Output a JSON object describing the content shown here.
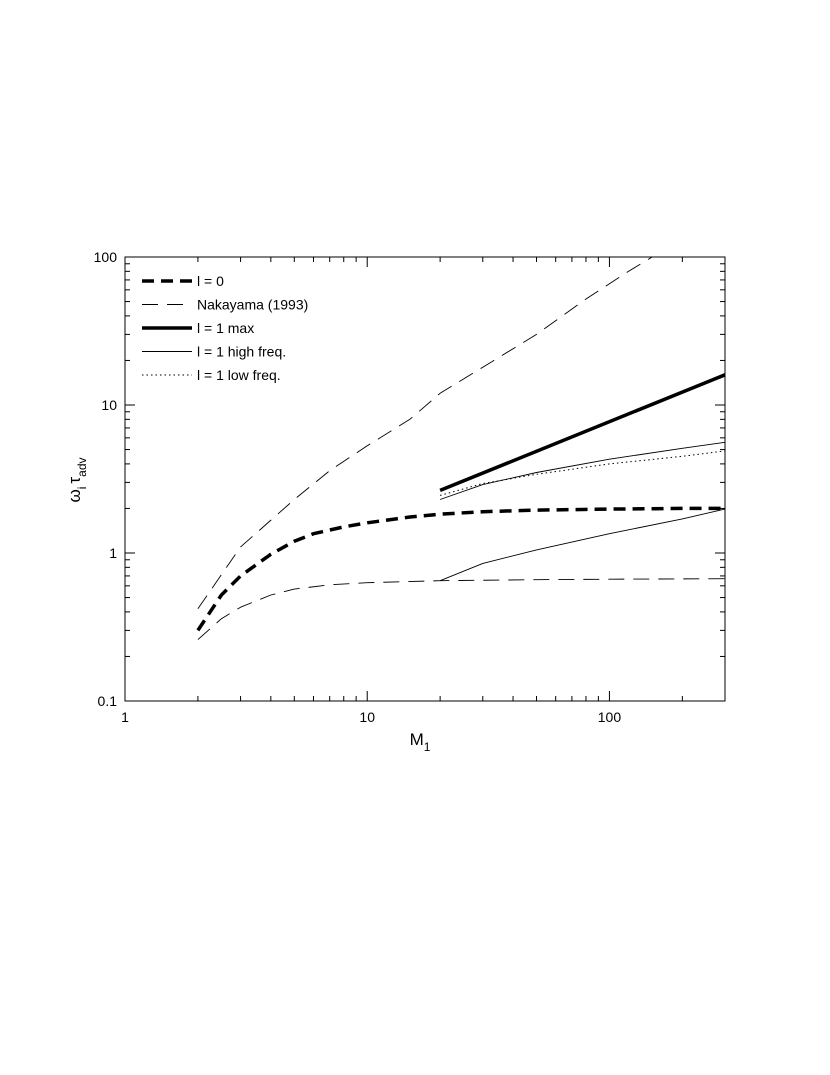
{
  "chart_data": {
    "type": "line",
    "title": "",
    "xlabel": {
      "main": "M",
      "subscript": "1"
    },
    "ylabel": {
      "omega": "ω",
      "omega_sub": "i",
      "tau": "τ",
      "tau_sub": "adv"
    },
    "xscale": "log",
    "yscale": "log",
    "xlim": [
      1,
      300
    ],
    "ylim": [
      0.1,
      100
    ],
    "x_tick_labels": [
      "1",
      "10",
      "100"
    ],
    "y_tick_labels": [
      "0.1",
      "1",
      "10",
      "100"
    ],
    "grid": false,
    "legend_position": "top-left",
    "series": [
      {
        "name": "l = 0",
        "style": "thick-dashed",
        "points": [
          [
            2,
            0.3
          ],
          [
            2.5,
            0.52
          ],
          [
            3,
            0.7
          ],
          [
            4,
            0.98
          ],
          [
            5,
            1.2
          ],
          [
            6,
            1.35
          ],
          [
            8,
            1.5
          ],
          [
            10,
            1.6
          ],
          [
            15,
            1.75
          ],
          [
            20,
            1.83
          ],
          [
            30,
            1.9
          ],
          [
            50,
            1.95
          ],
          [
            100,
            1.98
          ],
          [
            200,
            2.0
          ],
          [
            300,
            2.0
          ]
        ]
      },
      {
        "name": "Nakayama (1993)",
        "style": "thin-long-dashed",
        "points": [
          [
            2,
            0.42
          ],
          [
            3,
            1.1
          ],
          [
            5,
            2.3
          ],
          [
            7,
            3.6
          ],
          [
            10,
            5.3
          ],
          [
            15,
            8.0
          ],
          [
            20,
            12.0
          ],
          [
            30,
            18.0
          ],
          [
            50,
            30.0
          ],
          [
            80,
            52.0
          ],
          [
            120,
            80.0
          ],
          [
            150,
            100.0
          ]
        ]
      },
      {
        "name": "",
        "style": "thin-long-dashed",
        "points": [
          [
            2,
            0.26
          ],
          [
            2.5,
            0.36
          ],
          [
            3,
            0.43
          ],
          [
            4,
            0.52
          ],
          [
            5,
            0.57
          ],
          [
            7,
            0.61
          ],
          [
            10,
            0.63
          ],
          [
            20,
            0.65
          ],
          [
            50,
            0.66
          ],
          [
            100,
            0.665
          ],
          [
            300,
            0.67
          ]
        ]
      },
      {
        "name": "l = 1 max",
        "style": "thick-solid",
        "points": [
          [
            20,
            2.65
          ],
          [
            300,
            16.0
          ]
        ]
      },
      {
        "name": "l = 1 high freq.",
        "style": "thin-solid",
        "points": [
          [
            20,
            2.3
          ],
          [
            30,
            2.9
          ],
          [
            50,
            3.5
          ],
          [
            100,
            4.3
          ],
          [
            200,
            5.1
          ],
          [
            300,
            5.6
          ]
        ]
      },
      {
        "name": "",
        "style": "thin-solid",
        "points": [
          [
            20,
            0.65
          ],
          [
            30,
            0.85
          ],
          [
            50,
            1.05
          ],
          [
            100,
            1.35
          ],
          [
            200,
            1.7
          ],
          [
            300,
            1.98
          ]
        ]
      },
      {
        "name": "l = 1 low freq.",
        "style": "thin-dotted",
        "points": [
          [
            20,
            2.45
          ],
          [
            30,
            2.95
          ],
          [
            50,
            3.4
          ],
          [
            100,
            4.0
          ],
          [
            200,
            4.5
          ],
          [
            300,
            4.9
          ]
        ]
      }
    ],
    "legend": [
      "l = 0",
      "Nakayama (1993)",
      "l = 1 max",
      "l = 1 high freq.",
      "l = 1 low freq."
    ]
  }
}
